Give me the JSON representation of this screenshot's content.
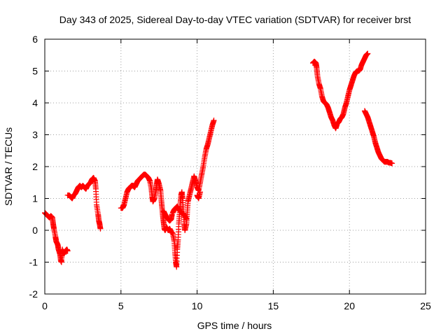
{
  "chart_data": {
    "type": "scatter",
    "title": "Day 343 of 2025, Sidereal Day-to-day VTEC variation (SDTVAR) for receiver brst",
    "xlabel": "GPS time / hours",
    "ylabel": "SDTVAR / TECUs",
    "xlim": [
      0,
      25
    ],
    "ylim": [
      -2,
      6
    ],
    "xticks": [
      0,
      5,
      10,
      15,
      20,
      25
    ],
    "yticks": [
      -2,
      -1,
      0,
      1,
      2,
      3,
      4,
      5,
      6
    ],
    "xtick_labels": [
      "0",
      "5",
      "10",
      "15",
      "20",
      "25"
    ],
    "ytick_labels": [
      "-2",
      "-1",
      "0",
      "1",
      "2",
      "3",
      "4",
      "5",
      "6"
    ],
    "grid": true,
    "marker": "+",
    "color": "#ff0000",
    "series": [
      {
        "name": "SDTVAR",
        "segments": [
          [
            [
              0.0,
              0.55
            ],
            [
              0.1,
              0.5
            ],
            [
              0.2,
              0.45
            ],
            [
              0.3,
              0.4
            ],
            [
              0.4,
              0.45
            ],
            [
              0.5,
              0.4
            ],
            [
              0.55,
              0.2
            ],
            [
              0.6,
              0.05
            ],
            [
              0.7,
              -0.2
            ],
            [
              0.75,
              -0.35
            ],
            [
              0.85,
              -0.45
            ],
            [
              0.9,
              -0.6
            ],
            [
              1.0,
              -0.75
            ],
            [
              1.05,
              -0.95
            ],
            [
              1.1,
              -1.0
            ],
            [
              1.15,
              -0.6
            ],
            [
              1.25,
              -0.75
            ],
            [
              1.35,
              -0.65
            ],
            [
              1.45,
              -0.6
            ],
            [
              1.5,
              -0.65
            ]
          ],
          [
            [
              1.5,
              1.1
            ],
            [
              1.6,
              1.1
            ],
            [
              1.7,
              1.05
            ],
            [
              1.8,
              1.0
            ],
            [
              1.9,
              1.1
            ],
            [
              2.0,
              1.15
            ],
            [
              2.1,
              1.25
            ],
            [
              2.2,
              1.35
            ],
            [
              2.3,
              1.4
            ],
            [
              2.4,
              1.35
            ],
            [
              2.5,
              1.4
            ],
            [
              2.6,
              1.35
            ],
            [
              2.7,
              1.3
            ],
            [
              2.8,
              1.4
            ],
            [
              2.9,
              1.45
            ],
            [
              3.0,
              1.5
            ],
            [
              3.1,
              1.6
            ],
            [
              3.2,
              1.65
            ],
            [
              3.3,
              1.55
            ],
            [
              3.35,
              1.3
            ],
            [
              3.4,
              0.8
            ],
            [
              3.5,
              0.5
            ],
            [
              3.55,
              0.3
            ],
            [
              3.6,
              0.2
            ],
            [
              3.65,
              0.05
            ]
          ],
          [
            [
              5.0,
              0.7
            ],
            [
              5.1,
              0.7
            ],
            [
              5.15,
              0.75
            ],
            [
              5.2,
              0.8
            ],
            [
              5.3,
              1.0
            ],
            [
              5.4,
              1.2
            ],
            [
              5.5,
              1.3
            ],
            [
              5.6,
              1.35
            ],
            [
              5.7,
              1.4
            ],
            [
              5.8,
              1.4
            ],
            [
              5.9,
              1.35
            ],
            [
              6.0,
              1.45
            ],
            [
              6.1,
              1.55
            ],
            [
              6.2,
              1.6
            ],
            [
              6.3,
              1.65
            ],
            [
              6.4,
              1.7
            ],
            [
              6.5,
              1.75
            ],
            [
              6.6,
              1.75
            ],
            [
              6.7,
              1.7
            ],
            [
              6.8,
              1.65
            ],
            [
              6.9,
              1.55
            ],
            [
              7.0,
              1.3
            ],
            [
              7.05,
              1.05
            ],
            [
              7.1,
              0.9
            ],
            [
              7.2,
              1.0
            ],
            [
              7.3,
              1.25
            ],
            [
              7.35,
              1.45
            ],
            [
              7.4,
              1.6
            ],
            [
              7.5,
              1.45
            ],
            [
              7.6,
              1.25
            ],
            [
              7.65,
              0.95
            ],
            [
              7.7,
              0.7
            ],
            [
              7.75,
              0.45
            ],
            [
              7.8,
              0.25
            ],
            [
              7.85,
              0.05
            ],
            [
              7.9,
              0.0
            ],
            [
              8.0,
              0.1
            ],
            [
              8.1,
              0.0
            ],
            [
              8.2,
              0.05
            ],
            [
              8.3,
              -0.05
            ],
            [
              8.4,
              -0.1
            ],
            [
              8.5,
              -0.35
            ],
            [
              8.55,
              -0.7
            ],
            [
              8.6,
              -1.0
            ],
            [
              8.65,
              -1.15
            ],
            [
              8.7,
              -0.6
            ],
            [
              8.75,
              -0.3
            ],
            [
              8.8,
              0.2
            ],
            [
              8.85,
              0.55
            ],
            [
              8.9,
              0.85
            ],
            [
              8.95,
              1.1
            ],
            [
              9.0,
              1.2
            ],
            [
              9.05,
              1.0
            ],
            [
              9.1,
              0.6
            ],
            [
              9.15,
              0.2
            ],
            [
              9.2,
              0.0
            ],
            [
              9.3,
              0.2
            ],
            [
              9.35,
              0.55
            ],
            [
              9.4,
              0.9
            ],
            [
              9.5,
              1.1
            ],
            [
              9.6,
              1.3
            ],
            [
              9.7,
              1.5
            ],
            [
              9.8,
              1.7
            ],
            [
              9.9,
              1.55
            ],
            [
              10.0,
              1.35
            ],
            [
              10.1,
              1.25
            ],
            [
              10.2,
              1.5
            ],
            [
              10.3,
              1.75
            ],
            [
              10.4,
              2.0
            ],
            [
              10.5,
              2.3
            ],
            [
              10.6,
              2.55
            ],
            [
              10.7,
              2.7
            ],
            [
              10.8,
              2.9
            ],
            [
              10.9,
              3.1
            ],
            [
              11.0,
              3.3
            ],
            [
              11.1,
              3.45
            ]
          ],
          [
            [
              8.4,
              0.55
            ],
            [
              8.5,
              0.65
            ],
            [
              8.6,
              0.7
            ],
            [
              8.7,
              0.75
            ],
            [
              8.8,
              0.65
            ],
            [
              8.9,
              0.6
            ],
            [
              9.0,
              0.55
            ],
            [
              9.1,
              0.5
            ],
            [
              9.2,
              0.45
            ],
            [
              9.3,
              0.35
            ]
          ],
          [
            [
              7.8,
              0.6
            ],
            [
              7.9,
              0.5
            ],
            [
              8.0,
              0.4
            ],
            [
              8.1,
              0.35
            ],
            [
              8.2,
              0.3
            ],
            [
              8.3,
              0.35
            ],
            [
              8.35,
              0.5
            ]
          ],
          [
            [
              10.0,
              1.1
            ],
            [
              10.1,
              1.0
            ],
            [
              10.2,
              1.2
            ]
          ],
          [
            [
              17.6,
              5.25
            ],
            [
              17.7,
              5.3
            ],
            [
              17.8,
              5.25
            ],
            [
              17.85,
              5.1
            ],
            [
              17.9,
              4.85
            ],
            [
              18.0,
              4.6
            ],
            [
              18.1,
              4.45
            ],
            [
              18.2,
              4.2
            ],
            [
              18.3,
              4.05
            ],
            [
              18.4,
              4.0
            ],
            [
              18.5,
              3.95
            ],
            [
              18.6,
              3.85
            ],
            [
              18.7,
              3.7
            ],
            [
              18.8,
              3.55
            ],
            [
              18.9,
              3.45
            ],
            [
              19.0,
              3.3
            ],
            [
              19.1,
              3.2
            ],
            [
              19.2,
              3.35
            ],
            [
              19.3,
              3.4
            ],
            [
              19.4,
              3.5
            ],
            [
              19.5,
              3.55
            ],
            [
              19.6,
              3.65
            ],
            [
              19.7,
              3.85
            ],
            [
              19.8,
              4.0
            ],
            [
              19.9,
              4.2
            ],
            [
              20.0,
              4.4
            ],
            [
              20.1,
              4.55
            ],
            [
              20.2,
              4.7
            ],
            [
              20.3,
              4.85
            ],
            [
              20.4,
              4.95
            ],
            [
              20.5,
              5.0
            ],
            [
              20.6,
              5.0
            ],
            [
              20.7,
              5.05
            ],
            [
              20.8,
              5.2
            ],
            [
              20.9,
              5.3
            ],
            [
              21.0,
              5.4
            ],
            [
              21.1,
              5.5
            ],
            [
              21.2,
              5.55
            ]
          ],
          [
            [
              21.0,
              3.75
            ],
            [
              21.1,
              3.65
            ],
            [
              21.2,
              3.55
            ],
            [
              21.3,
              3.4
            ],
            [
              21.4,
              3.25
            ],
            [
              21.5,
              3.1
            ],
            [
              21.6,
              2.95
            ],
            [
              21.7,
              2.75
            ],
            [
              21.8,
              2.6
            ],
            [
              21.9,
              2.45
            ],
            [
              22.0,
              2.35
            ],
            [
              22.1,
              2.25
            ],
            [
              22.2,
              2.2
            ],
            [
              22.3,
              2.15
            ],
            [
              22.4,
              2.15
            ],
            [
              22.5,
              2.15
            ],
            [
              22.6,
              2.12
            ],
            [
              22.7,
              2.12
            ],
            [
              22.8,
              2.1
            ]
          ]
        ]
      }
    ]
  }
}
